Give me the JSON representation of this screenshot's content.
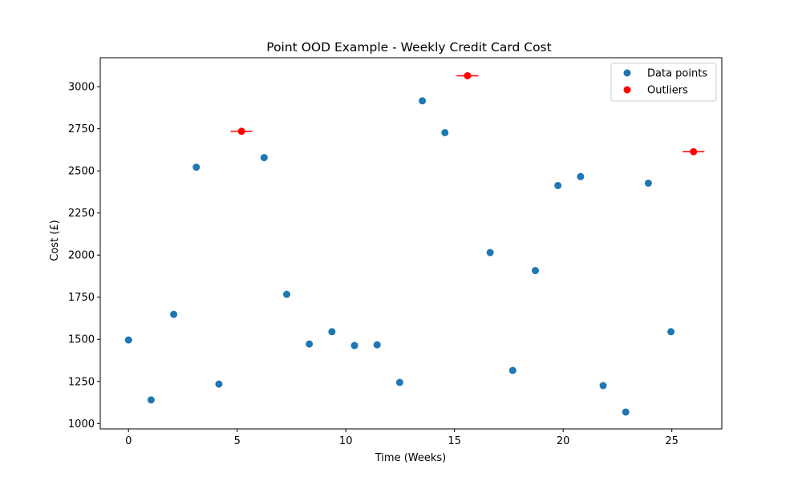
{
  "chart_data": {
    "type": "scatter",
    "title": "Point OOD Example - Weekly Credit Card Cost",
    "xlabel": "Time (Weeks)",
    "ylabel": "Cost (£)",
    "xlim": [
      -1.3,
      27.3
    ],
    "ylim": [
      968,
      3172
    ],
    "xticks": [
      0,
      5,
      10,
      15,
      20,
      25
    ],
    "yticks": [
      1000,
      1250,
      1500,
      1750,
      2000,
      2250,
      2500,
      2750,
      3000
    ],
    "grid": false,
    "legend": {
      "position": "top-right",
      "entries": [
        "Data points",
        "Outliers"
      ]
    },
    "colors": {
      "data_points": "#1f77b4",
      "outliers": "#ff0000"
    },
    "series": [
      {
        "name": "Data points",
        "points": [
          {
            "x": 0.0,
            "y": 1496
          },
          {
            "x": 1.04,
            "y": 1140
          },
          {
            "x": 2.08,
            "y": 1648
          },
          {
            "x": 3.12,
            "y": 2522
          },
          {
            "x": 4.16,
            "y": 1234
          },
          {
            "x": 6.24,
            "y": 2579
          },
          {
            "x": 7.28,
            "y": 1767
          },
          {
            "x": 8.32,
            "y": 1472
          },
          {
            "x": 9.36,
            "y": 1545
          },
          {
            "x": 10.4,
            "y": 1463
          },
          {
            "x": 11.44,
            "y": 1467
          },
          {
            "x": 12.48,
            "y": 1244
          },
          {
            "x": 13.52,
            "y": 2916
          },
          {
            "x": 14.56,
            "y": 2727
          },
          {
            "x": 16.64,
            "y": 2015
          },
          {
            "x": 17.68,
            "y": 1315
          },
          {
            "x": 18.72,
            "y": 1908
          },
          {
            "x": 19.76,
            "y": 2413
          },
          {
            "x": 20.8,
            "y": 2466
          },
          {
            "x": 21.84,
            "y": 1225
          },
          {
            "x": 22.88,
            "y": 1068
          },
          {
            "x": 23.92,
            "y": 2427
          },
          {
            "x": 24.96,
            "y": 1545
          }
        ]
      },
      {
        "name": "Outliers",
        "points": [
          {
            "x": 5.2,
            "y": 2735,
            "xerr": 0.5
          },
          {
            "x": 15.6,
            "y": 3065,
            "xerr": 0.5
          },
          {
            "x": 26.0,
            "y": 2614,
            "xerr": 0.5
          }
        ]
      }
    ]
  }
}
